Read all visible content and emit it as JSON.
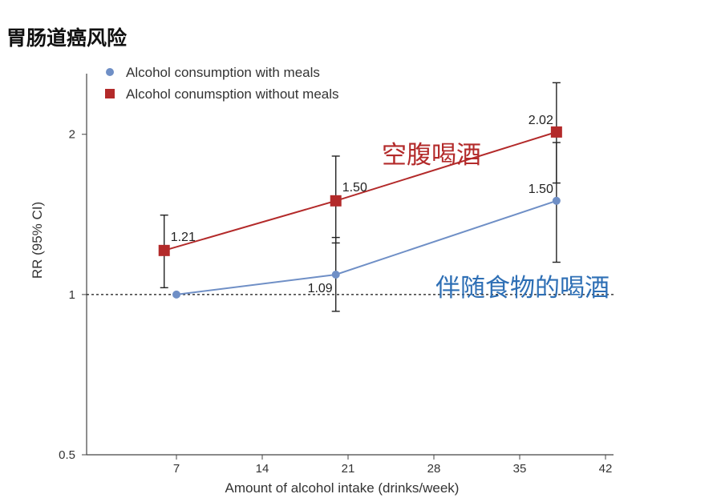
{
  "page": {
    "title": "胃肠道癌风险"
  },
  "chart_data": {
    "type": "line",
    "title": "",
    "xlabel": "Amount of alcohol intake (drinks/week)",
    "ylabel": "RR (95% CI)",
    "y_scale": "log",
    "xlim": [
      0,
      42
    ],
    "ylim": [
      0.5,
      2.6
    ],
    "x_ticks": [
      7,
      14,
      21,
      28,
      35,
      42
    ],
    "y_ticks": [
      0.5,
      1,
      2
    ],
    "y_tick_labels": [
      "0.5",
      "1",
      "2"
    ],
    "reference_line": {
      "y": 1,
      "style": "dashed"
    },
    "legend_position": "top-left",
    "series": [
      {
        "name": "Alcohol consumption with meals",
        "marker": "circle",
        "color": "#6f8fc6",
        "points": [
          {
            "x": 7,
            "y": 1.0,
            "label": ""
          },
          {
            "x": 20,
            "y": 1.09,
            "lo": 0.93,
            "hi": 1.28,
            "label": "1.09"
          },
          {
            "x": 38,
            "y": 1.5,
            "lo": 1.15,
            "hi": 1.93,
            "label": "1.50"
          }
        ]
      },
      {
        "name": "Alcohol conumsption without meals",
        "marker": "square",
        "color": "#b32a2a",
        "points": [
          {
            "x": 6,
            "y": 1.21,
            "lo": 1.03,
            "hi": 1.41,
            "label": "1.21"
          },
          {
            "x": 20,
            "y": 1.5,
            "lo": 1.25,
            "hi": 1.82,
            "label": "1.50"
          },
          {
            "x": 38,
            "y": 2.02,
            "lo": 1.62,
            "hi": 2.5,
            "label": "2.02"
          }
        ]
      }
    ],
    "annotations": [
      {
        "text": "空腹喝酒",
        "color": "#b32a2a",
        "near_series": 1
      },
      {
        "text": "伴随食物的喝酒",
        "color": "#2e6fb5",
        "near_series": 0
      }
    ]
  }
}
